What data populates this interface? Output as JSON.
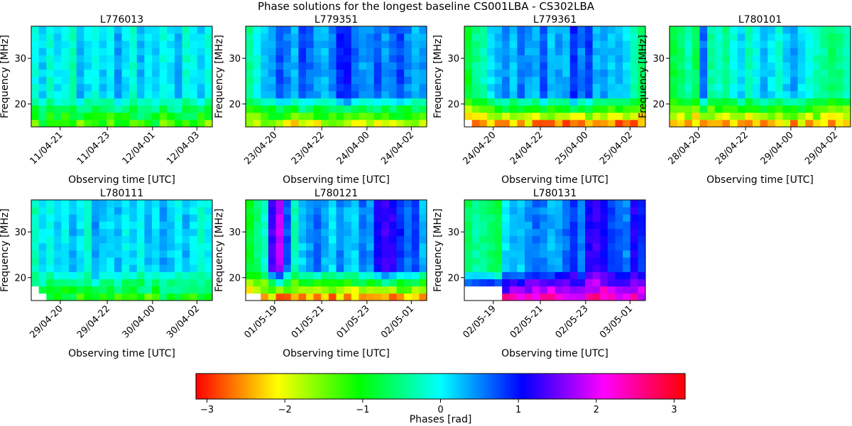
{
  "figure": {
    "suptitle": "Phase solutions for the longest baseline CS001LBA - CS302LBA"
  },
  "colorbar": {
    "label": "Phases [rad]",
    "ticks": [
      -3,
      -2,
      -1,
      0,
      1,
      2,
      3
    ],
    "tick_labels": [
      "−3",
      "−2",
      "−1",
      "0",
      "1",
      "2",
      "3"
    ],
    "range": [
      -3.1416,
      3.1416
    ],
    "colormap": "hsv"
  },
  "chart_data": [
    {
      "type": "heatmap",
      "title": "L776013",
      "xlabel": "Observing time [UTC]",
      "ylabel": "Frequency [MHz]",
      "ylim": [
        15,
        37
      ],
      "yticks": [
        20,
        30
      ],
      "xtick_labels": [
        "11/04-21",
        "11/04-23",
        "12/04-01",
        "12/04-03"
      ],
      "ncols": 24,
      "nrows": 14,
      "row_freqs_mhz": [
        15.8,
        17.4,
        19.0,
        20.6,
        22.2,
        23.8,
        25.4,
        27.0,
        28.6,
        30.2,
        31.8,
        33.4,
        35.0,
        36.6
      ],
      "base_phase_by_col": [
        -0.1,
        0.2,
        -0.2,
        0.1,
        0.0,
        -0.3,
        0.3,
        0.1,
        -0.1,
        0.2,
        0.0,
        0.4,
        0.1,
        -0.2,
        0.3,
        0.0,
        0.2,
        -0.1,
        0.1,
        0.3,
        -0.2,
        0.0,
        0.2,
        -0.1
      ],
      "low_freq_phase": -1.3,
      "blank_cells": []
    },
    {
      "type": "heatmap",
      "title": "L779351",
      "xlabel": "Observing time [UTC]",
      "ylabel": "Frequency [MHz]",
      "ylim": [
        15,
        37
      ],
      "yticks": [
        20,
        30
      ],
      "xtick_labels": [
        "23/04-20",
        "23/04-22",
        "24/04-00",
        "24/04-02"
      ],
      "ncols": 24,
      "nrows": 14,
      "row_freqs_mhz": [
        15.8,
        17.4,
        19.0,
        20.6,
        22.2,
        23.8,
        25.4,
        27.0,
        28.6,
        30.2,
        31.8,
        33.4,
        35.0,
        36.6
      ],
      "base_phase_by_col": [
        -0.4,
        -0.1,
        0.2,
        0.4,
        0.7,
        0.5,
        0.3,
        0.8,
        0.6,
        0.4,
        0.3,
        0.5,
        0.9,
        1.0,
        0.6,
        0.4,
        0.5,
        0.7,
        0.4,
        0.6,
        0.8,
        0.5,
        0.3,
        0.4
      ],
      "low_freq_phase": -1.9,
      "blank_cells": []
    },
    {
      "type": "heatmap",
      "title": "L779361",
      "xlabel": "Observing time [UTC]",
      "ylabel": "Frequency [MHz]",
      "ylim": [
        15,
        37
      ],
      "yticks": [
        20,
        30
      ],
      "xtick_labels": [
        "24/04-20",
        "24/04-22",
        "25/04-00",
        "25/04-02"
      ],
      "ncols": 24,
      "nrows": 14,
      "row_freqs_mhz": [
        15.8,
        17.4,
        19.0,
        20.6,
        22.2,
        23.8,
        25.4,
        27.0,
        28.6,
        30.2,
        31.8,
        33.4,
        35.0,
        36.6
      ],
      "base_phase_by_col": [
        -0.9,
        -0.5,
        -0.3,
        0.1,
        0.3,
        0.5,
        0.2,
        0.6,
        0.4,
        0.3,
        0.7,
        0.2,
        0.4,
        0.3,
        0.9,
        0.5,
        0.8,
        0.3,
        0.4,
        0.2,
        0.3,
        0.1,
        -0.3,
        -0.6
      ],
      "low_freq_phase": -2.5,
      "blank_cells": [
        [
          0,
          0
        ]
      ]
    },
    {
      "type": "heatmap",
      "title": "L780101",
      "xlabel": "Observing time [UTC]",
      "ylabel": "Frequency [MHz]",
      "ylim": [
        15,
        37
      ],
      "yticks": [
        20,
        30
      ],
      "xtick_labels": [
        "28/04-20",
        "28/04-22",
        "29/04-00",
        "29/04-02"
      ],
      "ncols": 24,
      "nrows": 14,
      "row_freqs_mhz": [
        15.8,
        17.4,
        19.0,
        20.6,
        22.2,
        23.8,
        25.4,
        27.0,
        28.6,
        30.2,
        31.8,
        33.4,
        35.0,
        36.6
      ],
      "base_phase_by_col": [
        -0.8,
        -0.6,
        -0.3,
        -0.7,
        0.6,
        -0.4,
        -0.2,
        -0.5,
        -0.1,
        0.2,
        -0.3,
        0.0,
        0.3,
        0.1,
        -0.2,
        0.2,
        0.4,
        0.1,
        -0.1,
        -0.3,
        -0.4,
        -0.6,
        -0.5,
        -0.3
      ],
      "low_freq_phase": -2.3,
      "blank_cells": []
    },
    {
      "type": "heatmap",
      "title": "L780111",
      "xlabel": "Observing time [UTC]",
      "ylabel": "Frequency [MHz]",
      "ylim": [
        15,
        37
      ],
      "yticks": [
        20,
        30
      ],
      "xtick_labels": [
        "29/04-20",
        "29/04-22",
        "30/04-00",
        "30/04-02"
      ],
      "ncols": 24,
      "nrows": 14,
      "row_freqs_mhz": [
        15.8,
        17.4,
        19.0,
        20.6,
        22.2,
        23.8,
        25.4,
        27.0,
        28.6,
        30.2,
        31.8,
        33.4,
        35.0,
        36.6
      ],
      "base_phase_by_col": [
        -0.3,
        0.1,
        -0.1,
        0.2,
        0.0,
        0.3,
        0.1,
        -0.2,
        0.4,
        0.2,
        0.1,
        0.3,
        0.0,
        0.2,
        -0.1,
        0.3,
        0.1,
        0.4,
        0.2,
        0.0,
        0.3,
        0.1,
        -0.2,
        0.0
      ],
      "low_freq_phase": -1.1,
      "blank_cells": [
        [
          0,
          0
        ],
        [
          1,
          0
        ],
        [
          0,
          1
        ]
      ]
    },
    {
      "type": "heatmap",
      "title": "L780121",
      "xlabel": "Observing time [UTC]",
      "ylabel": "Frequency [MHz]",
      "ylim": [
        15,
        37
      ],
      "yticks": [
        20,
        30
      ],
      "xtick_labels": [
        "01/05-19",
        "01/05-21",
        "01/05-23",
        "02/05-01"
      ],
      "ncols": 24,
      "nrows": 14,
      "row_freqs_mhz": [
        15.8,
        17.4,
        19.0,
        20.6,
        22.2,
        23.8,
        25.4,
        27.0,
        28.6,
        30.2,
        31.8,
        33.4,
        35.0,
        36.6
      ],
      "base_phase_by_col": [
        -0.9,
        -0.6,
        -0.2,
        1.3,
        1.8,
        0.7,
        -0.3,
        0.2,
        0.4,
        0.6,
        0.3,
        0.1,
        0.5,
        0.3,
        0.2,
        0.6,
        0.4,
        1.1,
        1.3,
        1.2,
        0.9,
        0.6,
        0.8,
        0.3
      ],
      "low_freq_phase": -2.4,
      "blank_cells": [
        [
          0,
          0
        ],
        [
          1,
          0
        ]
      ]
    },
    {
      "type": "heatmap",
      "title": "L780131",
      "xlabel": "Observing time [UTC]",
      "ylabel": "Frequency [MHz]",
      "ylim": [
        15,
        37
      ],
      "yticks": [
        20,
        30
      ],
      "xtick_labels": [
        "02/05-19",
        "02/05-21",
        "02/05-23",
        "03/05-01"
      ],
      "ncols": 24,
      "nrows": 14,
      "row_freqs_mhz": [
        15.8,
        17.4,
        19.0,
        20.6,
        22.2,
        23.8,
        25.4,
        27.0,
        28.6,
        30.2,
        31.8,
        33.4,
        35.0,
        36.6
      ],
      "base_phase_by_col": [
        -0.7,
        -0.4,
        -0.5,
        -0.6,
        -0.8,
        0.1,
        0.3,
        0.2,
        0.4,
        0.6,
        0.5,
        0.3,
        0.4,
        0.6,
        0.8,
        0.5,
        1.2,
        1.3,
        1.1,
        0.8,
        0.7,
        0.5,
        1.2,
        0.9
      ],
      "low_freq_phase": 2.2,
      "blank_cells": [
        [
          0,
          0
        ],
        [
          1,
          0
        ],
        [
          2,
          0
        ],
        [
          3,
          0
        ],
        [
          4,
          0
        ],
        [
          0,
          1
        ],
        [
          1,
          1
        ],
        [
          2,
          1
        ],
        [
          3,
          1
        ],
        [
          4,
          1
        ]
      ]
    }
  ]
}
